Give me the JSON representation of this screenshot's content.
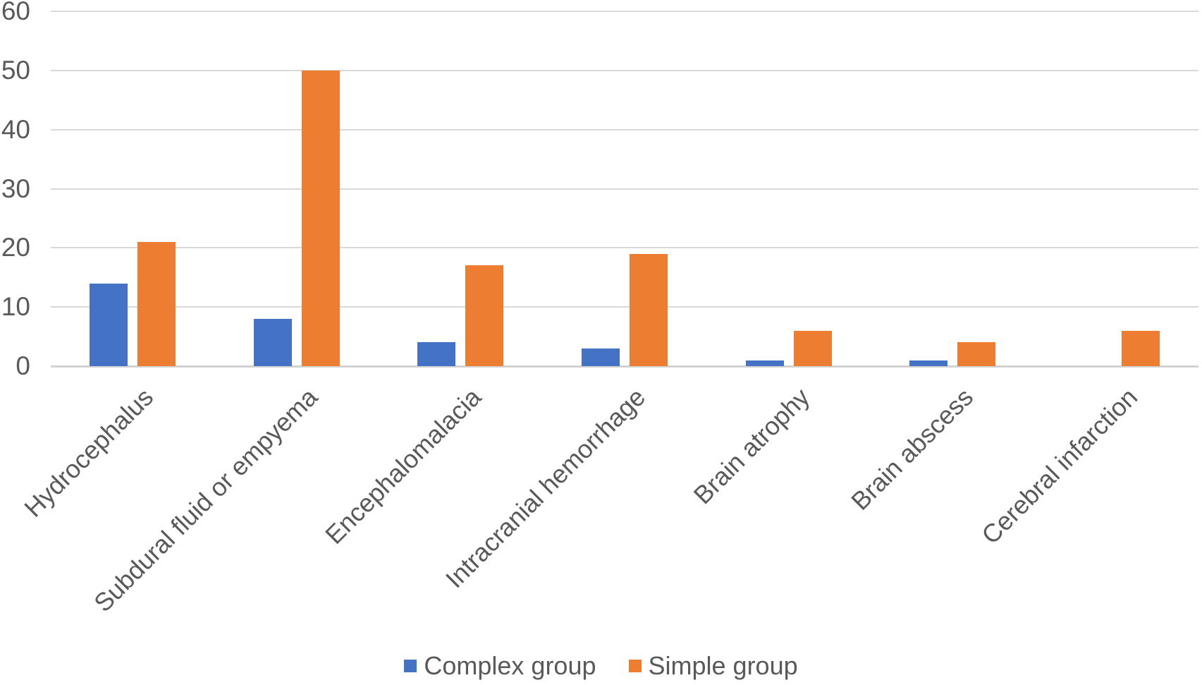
{
  "chart_data": {
    "type": "bar",
    "title": "",
    "xlabel": "",
    "ylabel": "",
    "categories": [
      "Hydrocephalus",
      "Subdural fluid or empyema",
      "Encephalomalacia",
      "Intracranial hemorrhage",
      "Brain atrophy",
      "Brain abscess",
      "Cerebral infarction"
    ],
    "series": [
      {
        "name": "Complex group",
        "color": "#4472C4",
        "values": [
          14,
          8,
          4,
          3,
          1,
          1,
          0
        ]
      },
      {
        "name": "Simple group",
        "color": "#ED7D31",
        "values": [
          21,
          50,
          17,
          19,
          6,
          4,
          6
        ]
      }
    ],
    "ylim": [
      0,
      60
    ],
    "yticks": [
      0,
      10,
      20,
      30,
      40,
      50,
      60
    ],
    "grid": true,
    "legend_position": "bottom"
  },
  "style": {
    "text_color": "#595959",
    "gridline_color": "#D9D9D9",
    "background_color": "#FFFFFF"
  }
}
